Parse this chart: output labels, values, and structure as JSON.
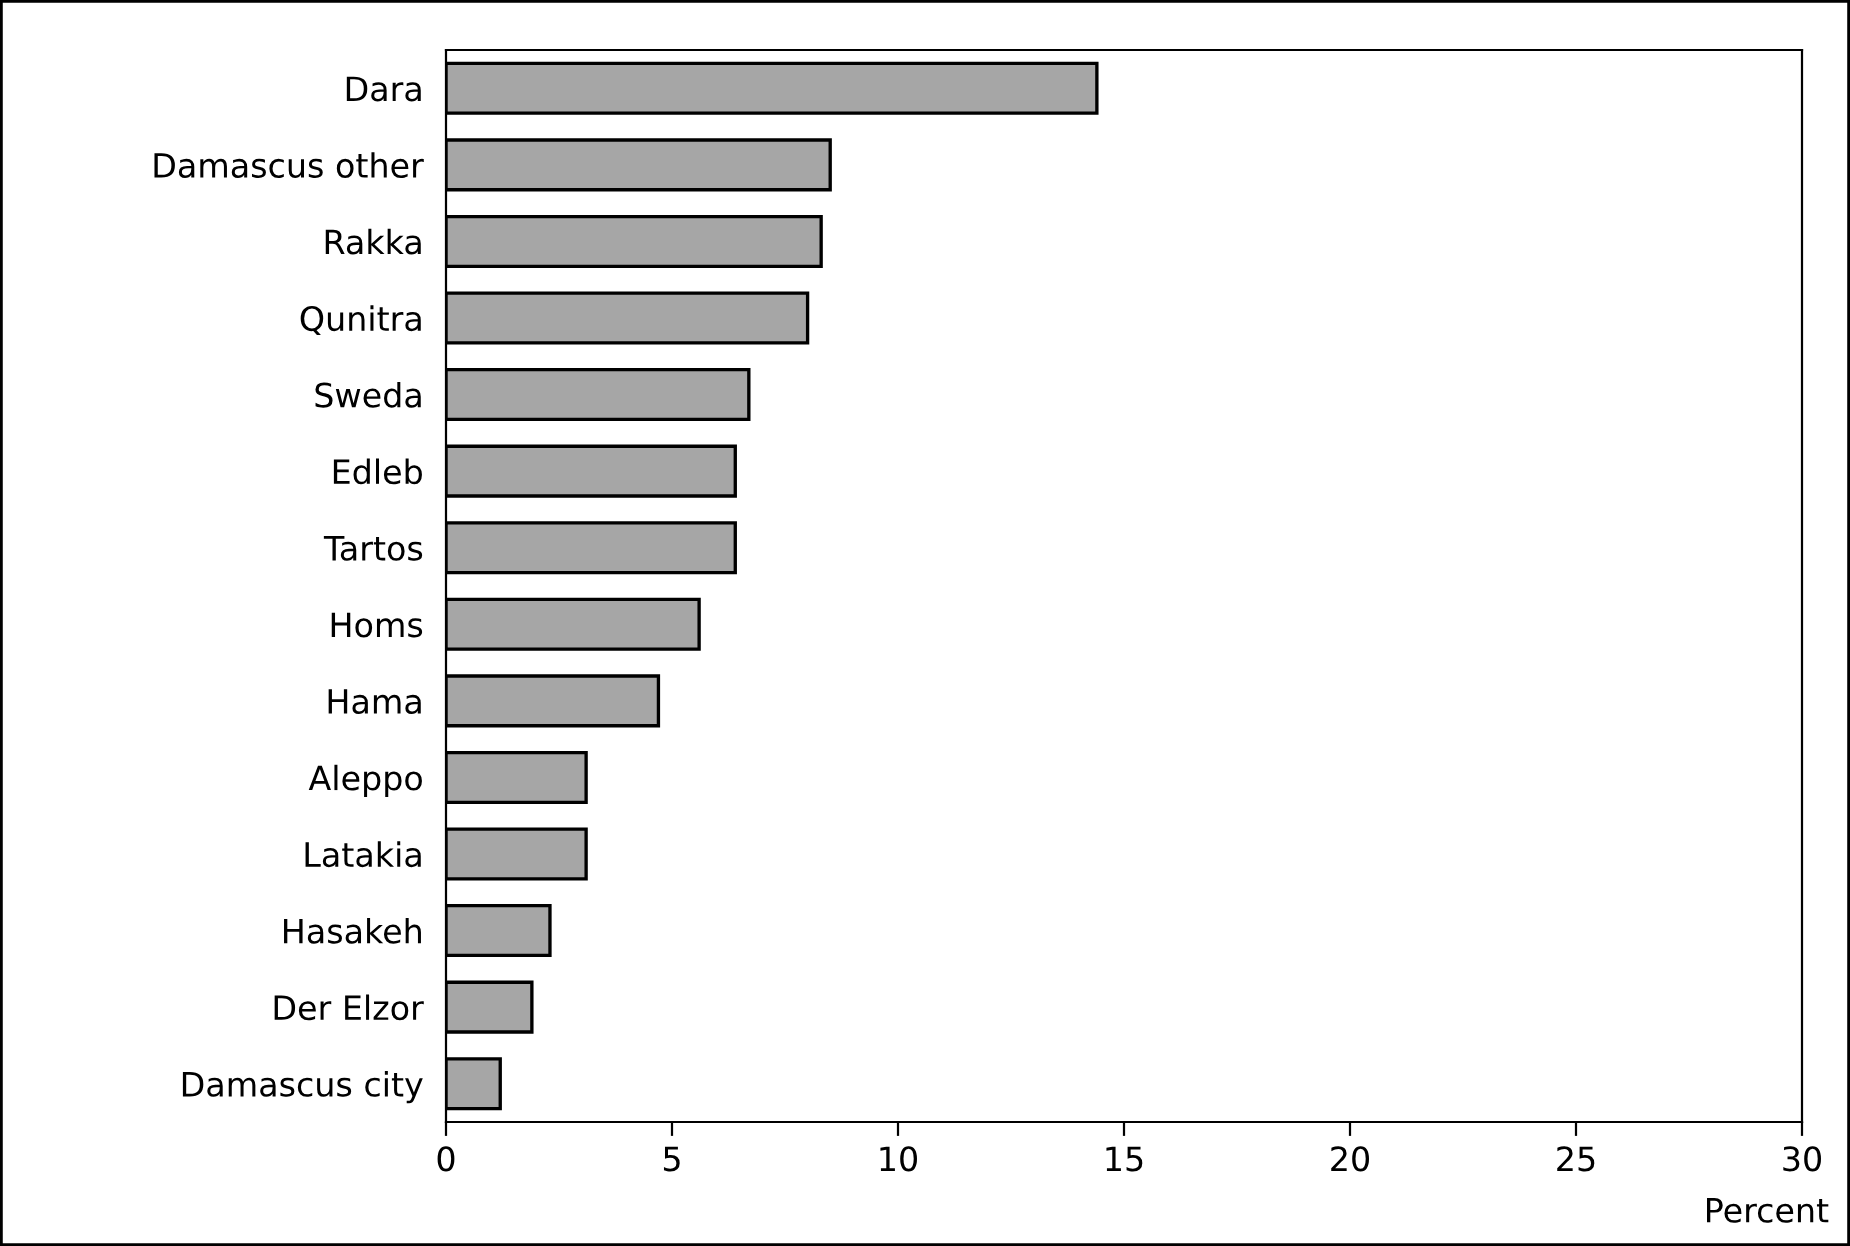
{
  "chart_data": {
    "type": "bar",
    "orientation": "horizontal",
    "xlabel": "Percent",
    "categories": [
      "Dara",
      "Damascus other",
      "Rakka",
      "Qunitra",
      "Sweda",
      "Edleb",
      "Tartos",
      "Homs",
      "Hama",
      "Aleppo",
      "Latakia",
      "Hasakeh",
      "Der Elzor",
      "Damascus city"
    ],
    "values": [
      14.4,
      8.5,
      8.3,
      8.0,
      6.7,
      6.4,
      6.4,
      5.6,
      4.7,
      3.1,
      3.1,
      2.3,
      1.9,
      1.2
    ],
    "color": "#a6a6a6",
    "xlim": [
      0,
      30
    ],
    "xticks": [
      0,
      5,
      10,
      15,
      20,
      25,
      30
    ],
    "grid": false,
    "legend": false
  }
}
